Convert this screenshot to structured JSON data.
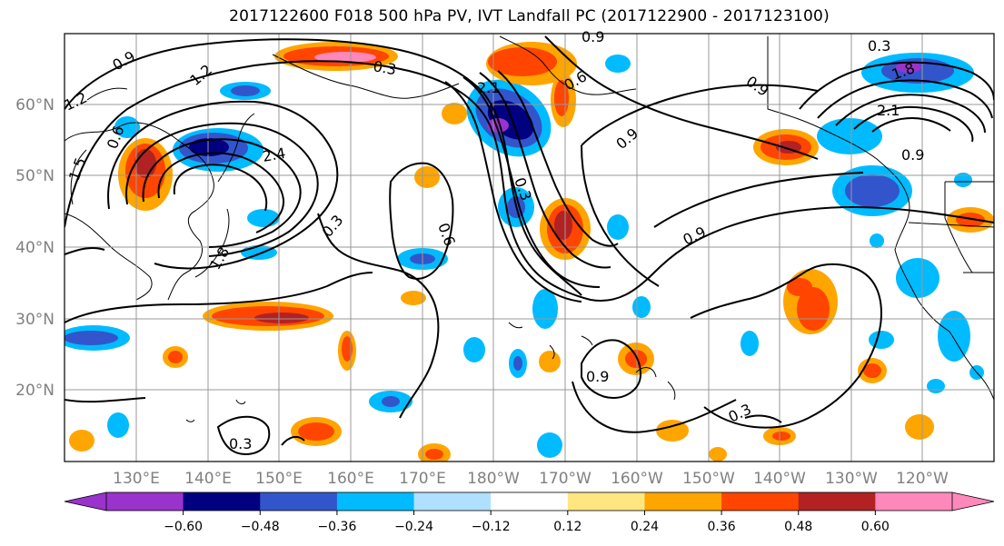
{
  "title": "2017122600 F018 500 hPa PV, IVT Landfall PC (2017122900 - 2017123100)",
  "lat_labels": [
    "60°N",
    "50°N",
    "40°N",
    "30°N",
    "20°N"
  ],
  "lon_labels": [
    "130°E",
    "140°E",
    "150°E",
    "160°E",
    "170°E",
    "180°W",
    "170°W",
    "160°W",
    "150°W",
    "140°W",
    "130°W",
    "120°W"
  ],
  "colorbar": {
    "tick_labels": [
      "−0.60",
      "−0.48",
      "−0.36",
      "−0.24",
      "−0.12",
      "0.12",
      "0.24",
      "0.36",
      "0.48",
      "0.60"
    ],
    "colors": [
      "#9933cc",
      "#000080",
      "#3355cc",
      "#00bbff",
      "#b0e0ff",
      "#ffffff",
      "#ffe680",
      "#ffa500",
      "#ff4500",
      "#b22222",
      "#ff88bb"
    ]
  },
  "contour_labels": [
    {
      "text": "0.9"
    },
    {
      "text": "1.2"
    },
    {
      "text": "1.5"
    },
    {
      "text": "0.6"
    },
    {
      "text": "1.2"
    },
    {
      "text": "0.3"
    },
    {
      "text": "2.1"
    },
    {
      "text": "2.4"
    },
    {
      "text": "0.3"
    },
    {
      "text": "1.8"
    },
    {
      "text": "0.6"
    },
    {
      "text": "0.9"
    },
    {
      "text": "0.6"
    },
    {
      "text": "0.9"
    },
    {
      "text": "0.3"
    },
    {
      "text": "0.3"
    },
    {
      "text": "1.8"
    },
    {
      "text": "2.1"
    },
    {
      "text": "0.9"
    },
    {
      "text": "0.9"
    },
    {
      "text": "0.9"
    },
    {
      "text": "0.9"
    },
    {
      "text": "0.3"
    },
    {
      "text": "0.3"
    }
  ]
}
